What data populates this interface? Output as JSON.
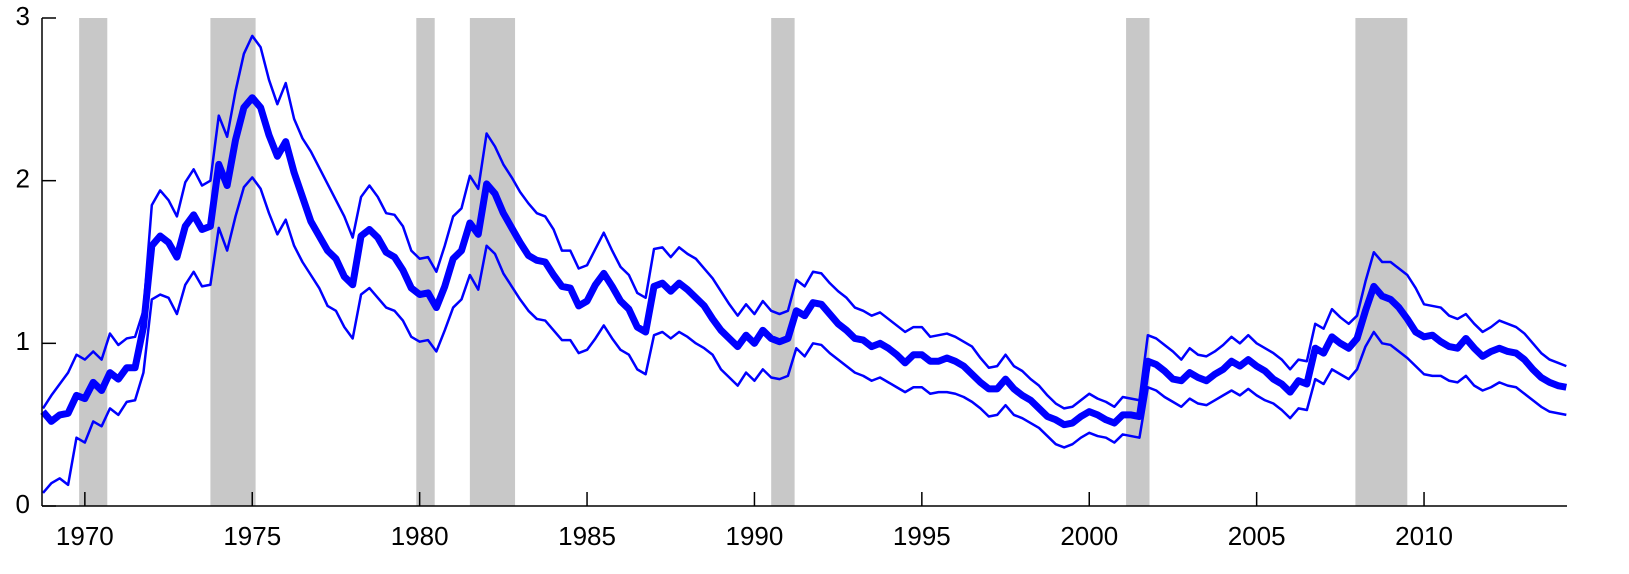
{
  "chart_data": {
    "type": "line",
    "x": [
      1968.75,
      1969,
      1969.25,
      1969.5,
      1969.75,
      1970,
      1970.25,
      1970.5,
      1970.75,
      1971,
      1971.25,
      1971.5,
      1971.75,
      1972,
      1972.25,
      1972.5,
      1972.75,
      1973,
      1973.25,
      1973.5,
      1973.75,
      1974,
      1974.25,
      1974.5,
      1974.75,
      1975,
      1975.25,
      1975.5,
      1975.75,
      1976,
      1976.25,
      1976.5,
      1976.75,
      1977,
      1977.25,
      1977.5,
      1977.75,
      1978,
      1978.25,
      1978.5,
      1978.75,
      1979,
      1979.25,
      1979.5,
      1979.75,
      1980,
      1980.25,
      1980.5,
      1980.75,
      1981,
      1981.25,
      1981.5,
      1981.75,
      1982,
      1982.25,
      1982.5,
      1982.75,
      1983,
      1983.25,
      1983.5,
      1983.75,
      1984,
      1984.25,
      1984.5,
      1984.75,
      1985,
      1985.25,
      1985.5,
      1985.75,
      1986,
      1986.25,
      1986.5,
      1986.75,
      1987,
      1987.25,
      1987.5,
      1987.75,
      1988,
      1988.25,
      1988.5,
      1988.75,
      1989,
      1989.25,
      1989.5,
      1989.75,
      1990,
      1990.25,
      1990.5,
      1990.75,
      1991,
      1991.25,
      1991.5,
      1991.75,
      1992,
      1992.25,
      1992.5,
      1992.75,
      1993,
      1993.25,
      1993.5,
      1993.75,
      1994,
      1994.25,
      1994.5,
      1994.75,
      1995,
      1995.25,
      1995.5,
      1995.75,
      1996,
      1996.25,
      1996.5,
      1996.75,
      1997,
      1997.25,
      1997.5,
      1997.75,
      1998,
      1998.25,
      1998.5,
      1998.75,
      1999,
      1999.25,
      1999.5,
      1999.75,
      2000,
      2000.25,
      2000.5,
      2000.75,
      2001,
      2001.25,
      2001.5,
      2001.75,
      2002,
      2002.25,
      2002.5,
      2002.75,
      2003,
      2003.25,
      2003.5,
      2003.75,
      2004,
      2004.25,
      2004.5,
      2004.75,
      2005,
      2005.25,
      2005.5,
      2005.75,
      2006,
      2006.25,
      2006.5,
      2006.75,
      2007,
      2007.25,
      2007.5,
      2007.75,
      2008,
      2008.25,
      2008.5,
      2008.75,
      2009,
      2009.25,
      2009.5,
      2009.75,
      2010,
      2010.25,
      2010.5,
      2010.75,
      2011,
      2011.25,
      2011.5,
      2011.75,
      2012,
      2012.25,
      2012.5,
      2012.75,
      2013,
      2013.25,
      2013.5,
      2013.75,
      2014,
      2014.25
    ],
    "series": [
      {
        "color": "#0000ff",
        "width": 2.5,
        "values": [
          0.6,
          0.68,
          0.75,
          0.82,
          0.93,
          0.9,
          0.95,
          0.9,
          1.06,
          0.99,
          1.03,
          1.04,
          1.2,
          1.85,
          1.94,
          1.88,
          1.78,
          1.99,
          2.07,
          1.97,
          2.0,
          2.4,
          2.27,
          2.55,
          2.78,
          2.89,
          2.82,
          2.62,
          2.47,
          2.6,
          2.38,
          2.26,
          2.18,
          2.08,
          1.98,
          1.88,
          1.78,
          1.65,
          1.9,
          1.97,
          1.9,
          1.8,
          1.79,
          1.72,
          1.57,
          1.52,
          1.53,
          1.44,
          1.6,
          1.78,
          1.83,
          2.03,
          1.95,
          2.29,
          2.21,
          2.1,
          2.02,
          1.93,
          1.86,
          1.8,
          1.78,
          1.7,
          1.57,
          1.57,
          1.46,
          1.48,
          1.58,
          1.68,
          1.57,
          1.47,
          1.42,
          1.31,
          1.28,
          1.58,
          1.59,
          1.53,
          1.59,
          1.55,
          1.52,
          1.46,
          1.4,
          1.32,
          1.24,
          1.17,
          1.24,
          1.18,
          1.26,
          1.2,
          1.18,
          1.2,
          1.39,
          1.35,
          1.44,
          1.43,
          1.37,
          1.32,
          1.28,
          1.22,
          1.2,
          1.17,
          1.19,
          1.15,
          1.11,
          1.07,
          1.1,
          1.1,
          1.04,
          1.05,
          1.06,
          1.04,
          1.01,
          0.98,
          0.91,
          0.85,
          0.86,
          0.93,
          0.86,
          0.83,
          0.78,
          0.74,
          0.68,
          0.63,
          0.6,
          0.61,
          0.65,
          0.69,
          0.66,
          0.64,
          0.61,
          0.67,
          0.66,
          0.65,
          1.05,
          1.03,
          0.99,
          0.95,
          0.9,
          0.97,
          0.93,
          0.92,
          0.95,
          0.99,
          1.04,
          1.0,
          1.05,
          1.0,
          0.97,
          0.94,
          0.9,
          0.84,
          0.9,
          0.89,
          1.12,
          1.09,
          1.21,
          1.16,
          1.12,
          1.17,
          1.38,
          1.56,
          1.5,
          1.5,
          1.46,
          1.42,
          1.34,
          1.24,
          1.23,
          1.22,
          1.17,
          1.15,
          1.18,
          1.12,
          1.07,
          1.1,
          1.14,
          1.12,
          1.1,
          1.06,
          1.0,
          0.94,
          0.9,
          0.88,
          0.86
        ]
      },
      {
        "color": "#0000ff",
        "width": 2.5,
        "values": [
          0.08,
          0.14,
          0.17,
          0.13,
          0.42,
          0.39,
          0.52,
          0.49,
          0.6,
          0.56,
          0.64,
          0.65,
          0.82,
          1.27,
          1.3,
          1.28,
          1.18,
          1.36,
          1.44,
          1.35,
          1.36,
          1.71,
          1.57,
          1.78,
          1.96,
          2.02,
          1.95,
          1.8,
          1.67,
          1.76,
          1.6,
          1.5,
          1.42,
          1.34,
          1.23,
          1.2,
          1.1,
          1.03,
          1.3,
          1.34,
          1.28,
          1.22,
          1.2,
          1.14,
          1.04,
          1.01,
          1.02,
          0.95,
          1.08,
          1.22,
          1.27,
          1.42,
          1.33,
          1.6,
          1.55,
          1.43,
          1.35,
          1.27,
          1.2,
          1.15,
          1.14,
          1.08,
          1.02,
          1.02,
          0.94,
          0.96,
          1.03,
          1.11,
          1.03,
          0.96,
          0.93,
          0.84,
          0.81,
          1.05,
          1.07,
          1.03,
          1.07,
          1.04,
          1.0,
          0.97,
          0.93,
          0.84,
          0.79,
          0.74,
          0.82,
          0.77,
          0.84,
          0.79,
          0.78,
          0.8,
          0.97,
          0.92,
          1.0,
          0.99,
          0.94,
          0.9,
          0.86,
          0.82,
          0.8,
          0.77,
          0.79,
          0.76,
          0.73,
          0.7,
          0.73,
          0.73,
          0.69,
          0.7,
          0.7,
          0.69,
          0.67,
          0.64,
          0.6,
          0.55,
          0.56,
          0.62,
          0.56,
          0.54,
          0.51,
          0.48,
          0.43,
          0.38,
          0.36,
          0.38,
          0.42,
          0.45,
          0.43,
          0.42,
          0.39,
          0.44,
          0.43,
          0.42,
          0.73,
          0.71,
          0.67,
          0.64,
          0.61,
          0.66,
          0.63,
          0.62,
          0.65,
          0.68,
          0.71,
          0.68,
          0.72,
          0.68,
          0.65,
          0.63,
          0.59,
          0.54,
          0.6,
          0.59,
          0.78,
          0.75,
          0.84,
          0.81,
          0.78,
          0.84,
          0.98,
          1.07,
          1.0,
          0.99,
          0.95,
          0.91,
          0.86,
          0.81,
          0.8,
          0.8,
          0.77,
          0.76,
          0.8,
          0.74,
          0.71,
          0.73,
          0.76,
          0.74,
          0.73,
          0.69,
          0.65,
          0.61,
          0.58,
          0.57,
          0.56
        ]
      },
      {
        "color": "#0000ff",
        "width": 7,
        "values": [
          0.58,
          0.52,
          0.56,
          0.57,
          0.68,
          0.66,
          0.76,
          0.71,
          0.82,
          0.78,
          0.85,
          0.85,
          1.1,
          1.6,
          1.66,
          1.62,
          1.53,
          1.72,
          1.79,
          1.7,
          1.72,
          2.1,
          1.97,
          2.25,
          2.45,
          2.51,
          2.45,
          2.28,
          2.15,
          2.24,
          2.05,
          1.9,
          1.75,
          1.66,
          1.57,
          1.52,
          1.41,
          1.36,
          1.66,
          1.7,
          1.65,
          1.56,
          1.53,
          1.45,
          1.34,
          1.3,
          1.31,
          1.22,
          1.35,
          1.52,
          1.57,
          1.74,
          1.67,
          1.98,
          1.92,
          1.8,
          1.71,
          1.62,
          1.54,
          1.51,
          1.5,
          1.42,
          1.35,
          1.34,
          1.23,
          1.26,
          1.36,
          1.43,
          1.35,
          1.26,
          1.21,
          1.1,
          1.07,
          1.35,
          1.37,
          1.32,
          1.37,
          1.33,
          1.28,
          1.23,
          1.15,
          1.08,
          1.03,
          0.98,
          1.05,
          1.0,
          1.08,
          1.03,
          1.01,
          1.03,
          1.2,
          1.17,
          1.25,
          1.24,
          1.18,
          1.12,
          1.08,
          1.03,
          1.02,
          0.98,
          1.0,
          0.97,
          0.93,
          0.88,
          0.93,
          0.93,
          0.89,
          0.89,
          0.91,
          0.89,
          0.86,
          0.81,
          0.76,
          0.72,
          0.72,
          0.78,
          0.72,
          0.68,
          0.65,
          0.6,
          0.55,
          0.53,
          0.5,
          0.51,
          0.55,
          0.58,
          0.56,
          0.53,
          0.51,
          0.56,
          0.56,
          0.55,
          0.89,
          0.87,
          0.83,
          0.78,
          0.77,
          0.82,
          0.79,
          0.77,
          0.81,
          0.84,
          0.89,
          0.86,
          0.9,
          0.86,
          0.83,
          0.78,
          0.75,
          0.7,
          0.77,
          0.75,
          0.97,
          0.94,
          1.04,
          1.0,
          0.97,
          1.03,
          1.2,
          1.35,
          1.29,
          1.27,
          1.22,
          1.15,
          1.07,
          1.04,
          1.05,
          1.01,
          0.98,
          0.97,
          1.03,
          0.97,
          0.92,
          0.95,
          0.97,
          0.95,
          0.94,
          0.9,
          0.84,
          0.79,
          0.76,
          0.74,
          0.73
        ]
      }
    ],
    "shaded_regions": [
      [
        1969.83,
        1970.67
      ],
      [
        1973.75,
        1975.1
      ],
      [
        1979.9,
        1980.45
      ],
      [
        1981.5,
        1982.85
      ],
      [
        1990.5,
        1991.2
      ],
      [
        2001.1,
        2001.8
      ],
      [
        2007.95,
        2009.5
      ]
    ],
    "shade_color": "#c8c8c8",
    "xlim": [
      1968.72,
      2014.27
    ],
    "xticks": [
      1970,
      1975,
      1980,
      1985,
      1990,
      1995,
      2000,
      2005,
      2010
    ],
    "ylim": [
      0,
      3
    ],
    "yticks": [
      0,
      1,
      2,
      3
    ],
    "grid": false
  }
}
